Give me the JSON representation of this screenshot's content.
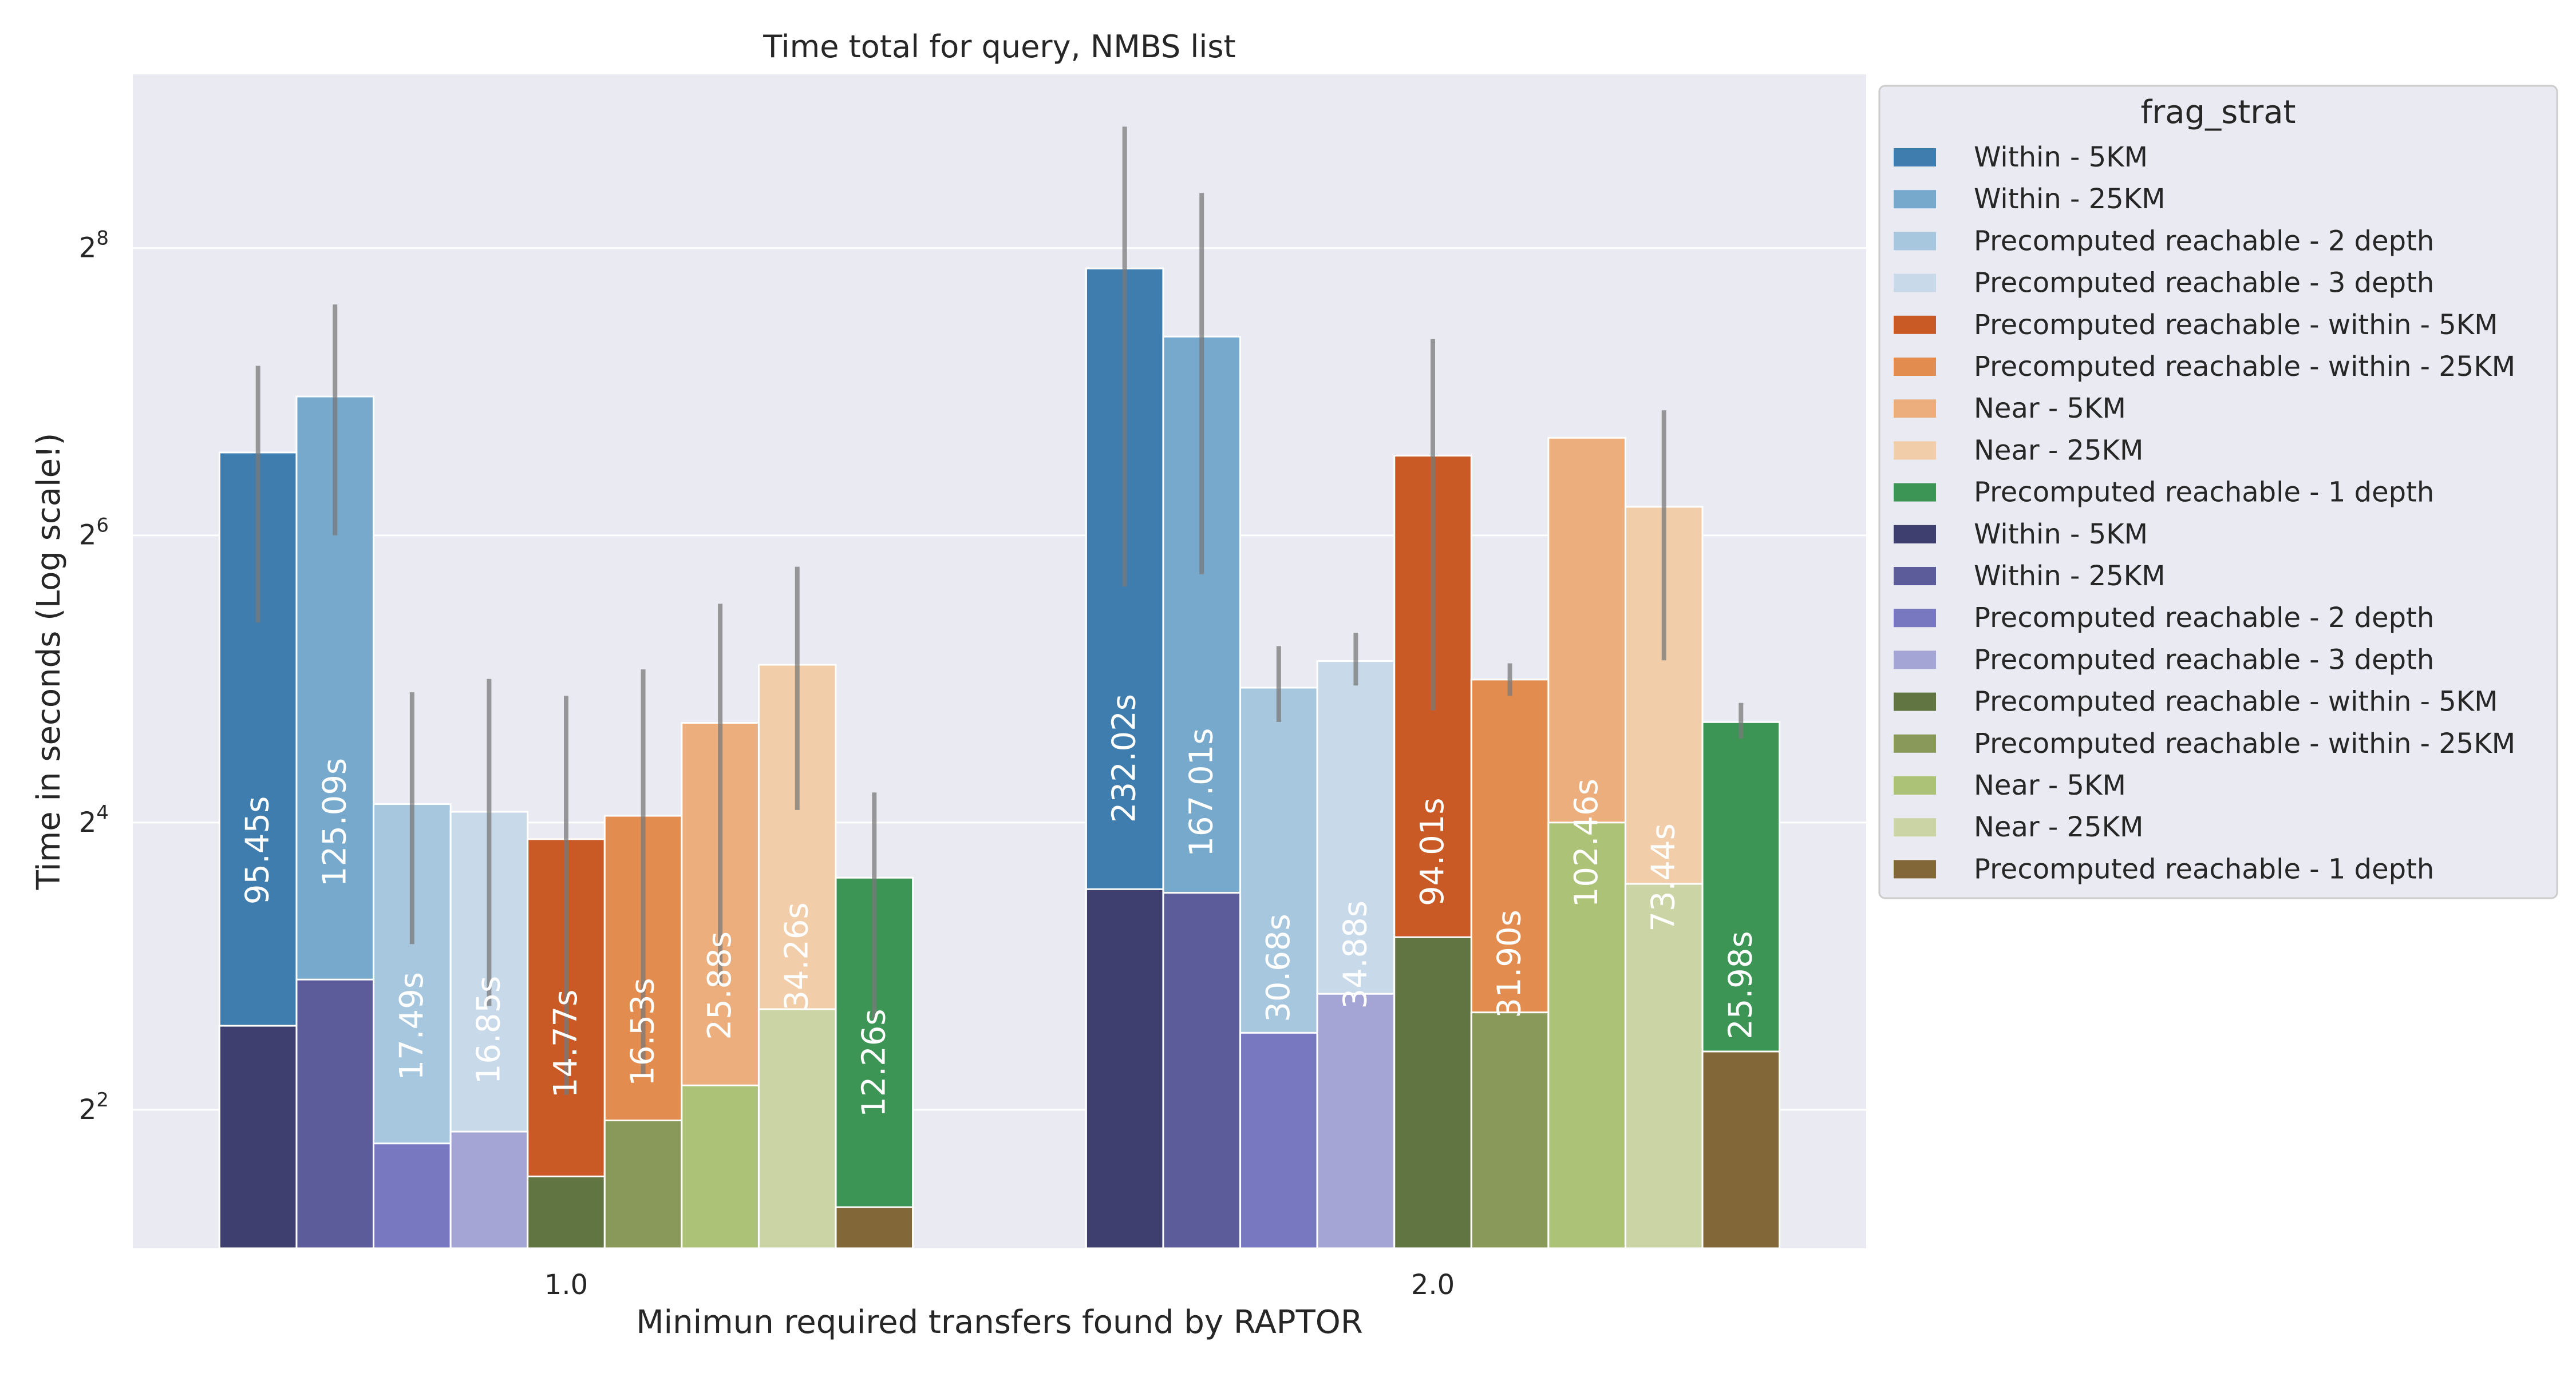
{
  "chart_data": {
    "type": "bar",
    "title": "Time total for query, NMBS list",
    "xlabel": "Minimun required transfers found by RAPTOR",
    "ylabel": "Time in seconds (Log scale!)",
    "yscale": "log2",
    "ylim": [
      2.05,
      592
    ],
    "yticks": [
      {
        "value": 4,
        "base": "2",
        "exp": "2"
      },
      {
        "value": 16,
        "base": "2",
        "exp": "4"
      },
      {
        "value": 64,
        "base": "2",
        "exp": "6"
      },
      {
        "value": 256,
        "base": "2",
        "exp": "8"
      }
    ],
    "grid": true,
    "categories": [
      "1.0",
      "2.0"
    ],
    "legend": {
      "title": "frag_strat",
      "position": "outside right"
    },
    "series": [
      {
        "name": "Within - 5KM",
        "color": "#3e7dae",
        "values": [
          95.45,
          232.02
        ],
        "labels": [
          "95.45s",
          "232.02s"
        ],
        "ci": [
          [
            42,
            145
          ],
          [
            50,
            460
          ]
        ]
      },
      {
        "name": "Within - 25KM",
        "color": "#77a9cc",
        "values": [
          125.09,
          167.01
        ],
        "labels": [
          "125.09s",
          "167.01s"
        ],
        "ci": [
          [
            64,
            195
          ],
          [
            53,
            334
          ]
        ]
      },
      {
        "name": "Precomputed reachable - 2 depth",
        "color": "#a6c7dd",
        "values": [
          17.49,
          30.68
        ],
        "labels": [
          "17.49s",
          "30.68s"
        ],
        "ci": [
          [
            8.9,
            30
          ],
          [
            26,
            37.5
          ]
        ]
      },
      {
        "name": "Precomputed reachable - 3 depth",
        "color": "#c8d9e9",
        "values": [
          16.85,
          34.88
        ],
        "labels": [
          "16.85s",
          "34.88s"
        ],
        "ci": [
          [
            6.6,
            32
          ],
          [
            31,
            40
          ]
        ]
      },
      {
        "name": "Precomputed reachable - within - 5KM",
        "color": "#c95a25",
        "values": [
          14.77,
          94.01
        ],
        "labels": [
          "14.77s",
          "94.01s"
        ],
        "ci": [
          [
            4.3,
            29.5
          ],
          [
            27.5,
            165
          ]
        ]
      },
      {
        "name": "Precomputed reachable - within - 25KM",
        "color": "#e38c4f",
        "values": [
          16.53,
          31.9
        ],
        "labels": [
          "16.53s",
          "31.90s"
        ],
        "ci": [
          [
            4.7,
            33.5
          ],
          [
            29.5,
            34.5
          ]
        ]
      },
      {
        "name": "Near - 5KM",
        "color": "#ebae7c",
        "values": [
          25.88,
          102.46
        ],
        "labels": [
          "25.88s",
          "102.46s"
        ],
        "ci": [
          [
            7.3,
            46
          ],
          [
            -1,
            -1
          ]
        ]
      },
      {
        "name": "Near - 25KM",
        "color": "#f2cda9",
        "values": [
          34.26,
          73.44
        ],
        "labels": [
          "34.26s",
          "73.44s"
        ],
        "ci": [
          [
            17,
            55
          ],
          [
            35,
            117
          ]
        ]
      },
      {
        "name": "Precomputed reachable - 1 depth",
        "color": "#3d9555",
        "values": [
          12.26,
          25.98
        ],
        "labels": [
          "12.26s",
          "25.98s"
        ],
        "ci": [
          [
            6.2,
            18.5
          ],
          [
            24,
            28.5
          ]
        ]
      },
      {
        "name": "Within - 5KM",
        "color": "#3f3f6f",
        "values": [
          6.0,
          11.6
        ],
        "labels": [
          "",
          ""
        ],
        "ci": [
          [
            -1,
            -1
          ],
          [
            -1,
            -1
          ]
        ]
      },
      {
        "name": "Within - 25KM",
        "color": "#5b5c99",
        "values": [
          7.5,
          11.4
        ],
        "labels": [
          "",
          ""
        ],
        "ci": [
          [
            -1,
            -1
          ],
          [
            -1,
            -1
          ]
        ]
      },
      {
        "name": "Precomputed reachable - 2 depth",
        "color": "#7878c1",
        "values": [
          3.4,
          5.8
        ],
        "labels": [
          "",
          ""
        ],
        "ci": [
          [
            -1,
            -1
          ],
          [
            -1,
            -1
          ]
        ]
      },
      {
        "name": "Precomputed reachable - 3 depth",
        "color": "#a4a4d5",
        "values": [
          3.6,
          7.0
        ],
        "labels": [
          "",
          ""
        ],
        "ci": [
          [
            -1,
            -1
          ],
          [
            -1,
            -1
          ]
        ]
      },
      {
        "name": "Precomputed reachable - within - 5KM",
        "color": "#607542",
        "values": [
          2.9,
          9.2
        ],
        "labels": [
          "",
          ""
        ],
        "ci": [
          [
            -1,
            -1
          ],
          [
            -1,
            -1
          ]
        ]
      },
      {
        "name": "Precomputed reachable - within - 25KM",
        "color": "#889959",
        "values": [
          3.8,
          6.4
        ],
        "labels": [
          "",
          ""
        ],
        "ci": [
          [
            -1,
            -1
          ],
          [
            -1,
            -1
          ]
        ]
      },
      {
        "name": "Near - 5KM",
        "color": "#acc276",
        "values": [
          4.5,
          16.0
        ],
        "labels": [
          "",
          ""
        ],
        "ci": [
          [
            -1,
            -1
          ],
          [
            -1,
            -1
          ]
        ]
      },
      {
        "name": "Near - 25KM",
        "color": "#cbd4a4",
        "values": [
          6.5,
          11.9
        ],
        "labels": [
          "",
          ""
        ],
        "ci": [
          [
            -1,
            -1
          ],
          [
            -1,
            -1
          ]
        ]
      },
      {
        "name": "Precomputed reachable - 1 depth",
        "color": "#826739",
        "values": [
          2.5,
          5.3
        ],
        "labels": [
          "",
          ""
        ],
        "ci": [
          [
            -1,
            -1
          ],
          [
            -1,
            -1
          ]
        ]
      }
    ]
  }
}
